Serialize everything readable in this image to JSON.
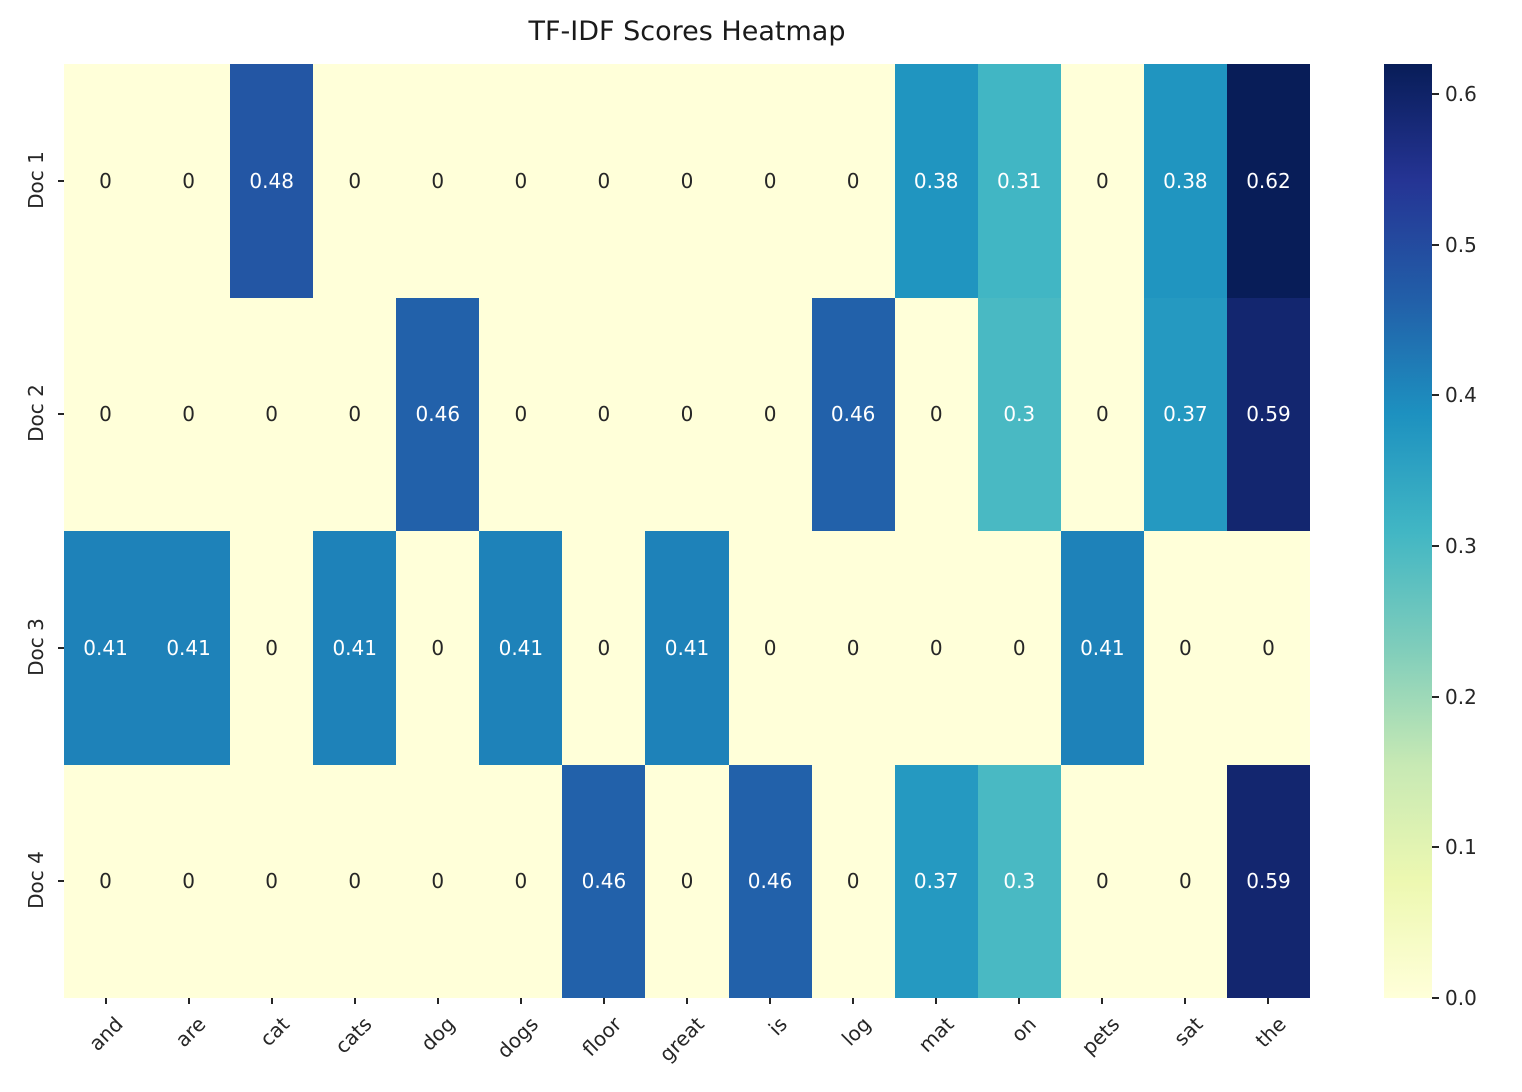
{
  "chart_data": {
    "type": "heatmap",
    "title": "TF-IDF Scores Heatmap",
    "rows": [
      "Doc 1",
      "Doc 2",
      "Doc 3",
      "Doc 4"
    ],
    "columns": [
      "and",
      "are",
      "cat",
      "cats",
      "dog",
      "dogs",
      "floor",
      "great",
      "is",
      "log",
      "mat",
      "on",
      "pets",
      "sat",
      "the"
    ],
    "values": [
      [
        0,
        0,
        0.48,
        0,
        0,
        0,
        0,
        0,
        0,
        0,
        0.38,
        0.31,
        0,
        0.38,
        0.62
      ],
      [
        0,
        0,
        0,
        0,
        0.46,
        0,
        0,
        0,
        0,
        0.46,
        0,
        0.3,
        0,
        0.37,
        0.59
      ],
      [
        0.41,
        0.41,
        0,
        0.41,
        0,
        0.41,
        0,
        0.41,
        0,
        0,
        0,
        0,
        0.41,
        0,
        0
      ],
      [
        0,
        0,
        0,
        0,
        0,
        0,
        0.46,
        0,
        0.46,
        0,
        0.37,
        0.3,
        0,
        0,
        0.59
      ]
    ],
    "vmin": 0,
    "vmax": 0.62,
    "colormap": "YlGnBu",
    "colormap_stops": [
      {
        "pos": 0.0,
        "color": "#ffffd9"
      },
      {
        "pos": 0.125,
        "color": "#edf8b1"
      },
      {
        "pos": 0.25,
        "color": "#c7e9b4"
      },
      {
        "pos": 0.375,
        "color": "#7fcdbb"
      },
      {
        "pos": 0.5,
        "color": "#41b6c4"
      },
      {
        "pos": 0.625,
        "color": "#1d91c0"
      },
      {
        "pos": 0.75,
        "color": "#225ea8"
      },
      {
        "pos": 0.875,
        "color": "#253494"
      },
      {
        "pos": 1.0,
        "color": "#081d58"
      }
    ],
    "colorbar_tick_values": [
      0.6,
      0.5,
      0.4,
      0.3,
      0.2,
      0.1,
      0.0
    ],
    "annotation_text_light": "#ffffff",
    "annotation_text_dark": "#262626",
    "legend_position": "right-colorbar",
    "grid": false
  }
}
